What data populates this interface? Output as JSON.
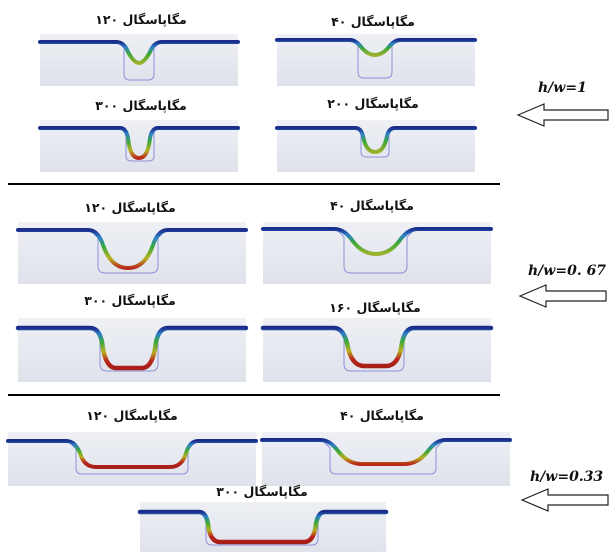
{
  "colors": {
    "strip_flat": "#1a2d8a",
    "strip_edge": "#2f80c8",
    "strip_green": "#3aa83a",
    "strip_yellow": "#b7b021",
    "strip_red": "#b8261c",
    "mold_outline": "#8c8fd8"
  },
  "groups": [
    {
      "ratio_label": "h/w=1",
      "panels": [
        {
          "pressure_label": "۱۲۰ مگاپاسگال",
          "fill_level": 0.4
        },
        {
          "pressure_label": "۴۰ مگاپاسگال",
          "fill_level": 0.2
        },
        {
          "pressure_label": "۳۰۰ مگاپاسگال",
          "fill_level": 0.7
        },
        {
          "pressure_label": "۲۰۰ مگاپاسگال",
          "fill_level": 0.55
        }
      ]
    },
    {
      "ratio_label": "h/w=0. 67",
      "panels": [
        {
          "pressure_label": "۱۲۰ مگاپاسگال",
          "fill_level": 0.6
        },
        {
          "pressure_label": "۴۰ مگاپاسگال",
          "fill_level": 0.3
        },
        {
          "pressure_label": "۳۰۰ مگاپاسگال",
          "fill_level": 0.95
        },
        {
          "pressure_label": "۱۶۰ مگاپاسگال",
          "fill_level": 0.85
        }
      ]
    },
    {
      "ratio_label": "h/w=0.33",
      "panels": [
        {
          "pressure_label": "۱۲۰ مگاپاسگال",
          "fill_level": 0.85
        },
        {
          "pressure_label": "۴۰ مگاپاسگال",
          "fill_level": 0.6
        },
        {
          "pressure_label": "۳۰۰ مگاپاسگال",
          "fill_level": 1.0
        }
      ]
    }
  ]
}
